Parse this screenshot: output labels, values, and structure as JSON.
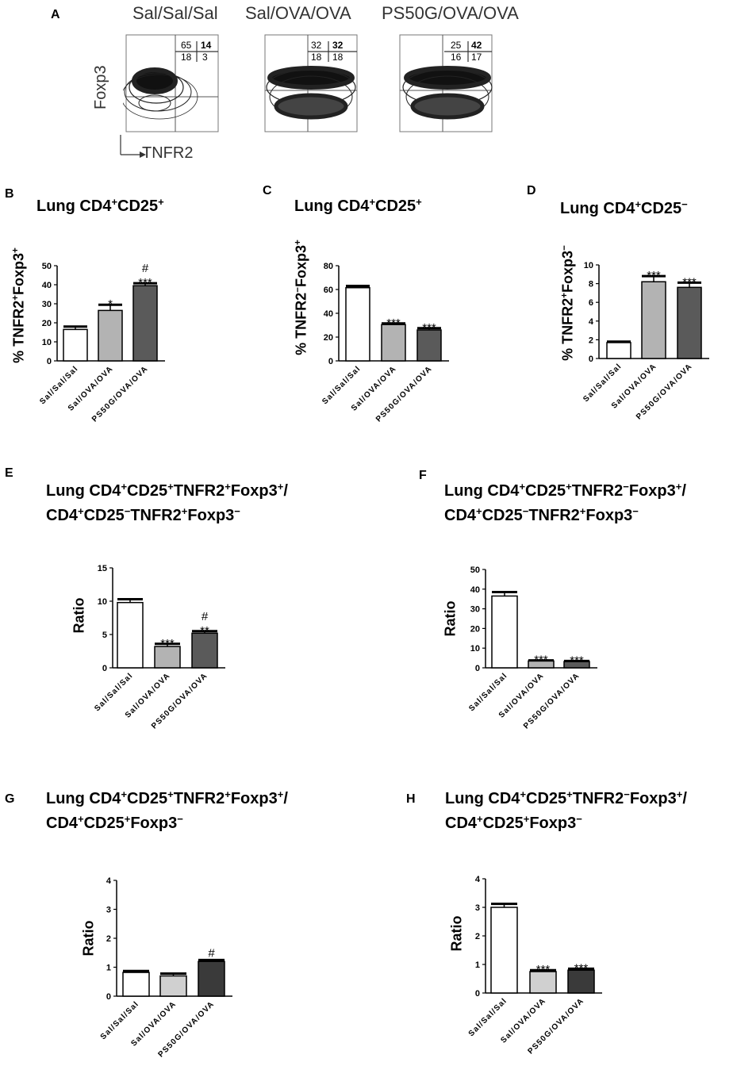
{
  "panels": {
    "A": "A",
    "B": "B",
    "C": "C",
    "D": "D",
    "E": "E",
    "F": "F",
    "G": "G",
    "H": "H"
  },
  "flow": {
    "headers": [
      "Sal/Sal/Sal",
      "Sal/OVA/OVA",
      "PS50G/OVA/OVA"
    ],
    "y_axis": "Foxp3",
    "x_axis": "TNFR2",
    "quadrants": [
      {
        "tl": "65",
        "tr": "14",
        "bl": "18",
        "br": "3"
      },
      {
        "tl": "32",
        "tr": "32",
        "bl": "18",
        "br": "18"
      },
      {
        "tl": "25",
        "tr": "42",
        "bl": "16",
        "br": "17"
      }
    ]
  },
  "chart_data": [
    {
      "panel": "B",
      "type": "bar",
      "title": [
        "Lung CD4",
        "+",
        "CD25",
        "+"
      ],
      "ylabel": [
        "% TNFR2",
        "+",
        "Foxp3",
        "+"
      ],
      "categories": [
        "Sal/Sal/Sal",
        "Sal/OVA/OVA",
        "PS50G/OVA/OVA"
      ],
      "values": [
        16.5,
        26.5,
        39.5
      ],
      "errors": [
        1.5,
        3,
        1.3
      ],
      "fills": [
        "#ffffff",
        "#b3b3b3",
        "#5a5a5a"
      ],
      "ylim": [
        0,
        50
      ],
      "yticks": [
        0,
        10,
        20,
        30,
        40,
        50
      ],
      "annotations": [
        [],
        [
          "*"
        ],
        [
          "#",
          "***"
        ]
      ]
    },
    {
      "panel": "C",
      "type": "bar",
      "title": [
        "Lung CD4",
        "+",
        "CD25",
        "+"
      ],
      "ylabel": [
        "% TNFR2",
        "−",
        "Foxp3",
        "+"
      ],
      "categories": [
        "Sal/Sal/Sal",
        "Sal/OVA/OVA",
        "PS50G/OVA/OVA"
      ],
      "values": [
        61.5,
        30.5,
        26
      ],
      "errors": [
        1.5,
        1,
        1.5
      ],
      "fills": [
        "#ffffff",
        "#b3b3b3",
        "#5a5a5a"
      ],
      "ylim": [
        0,
        80
      ],
      "yticks": [
        0,
        20,
        40,
        60,
        80
      ],
      "annotations": [
        [],
        [
          "***"
        ],
        [
          "***"
        ]
      ]
    },
    {
      "panel": "D",
      "type": "bar",
      "title": [
        "Lung CD4",
        "+",
        "CD25",
        "−"
      ],
      "ylabel": [
        "% TNFR2",
        "+",
        "Foxp3",
        "−"
      ],
      "categories": [
        "Sal/Sal/Sal",
        "Sal/OVA/OVA",
        "PS50G/OVA/OVA"
      ],
      "values": [
        1.7,
        8.2,
        7.6
      ],
      "errors": [
        0.1,
        0.6,
        0.5
      ],
      "fills": [
        "#ffffff",
        "#b3b3b3",
        "#5a5a5a"
      ],
      "ylim": [
        0,
        10
      ],
      "yticks": [
        0,
        2,
        4,
        6,
        8,
        10
      ],
      "annotations": [
        [],
        [
          "***"
        ],
        [
          "***"
        ]
      ]
    },
    {
      "panel": "E",
      "type": "bar",
      "title_lines": [
        [
          "Lung CD4",
          "+",
          "CD25",
          "+",
          "TNFR2",
          "+",
          "Foxp3",
          "+",
          "/"
        ],
        [
          "CD4",
          "+",
          "CD25",
          "−",
          "TNFR2",
          "+",
          "Foxp3",
          "−"
        ]
      ],
      "ylabel": [
        "Ratio"
      ],
      "categories": [
        "Sal/Sal/Sal",
        "Sal/OVA/OVA",
        "PS50G/OVA/OVA"
      ],
      "values": [
        9.8,
        3.2,
        5.2
      ],
      "errors": [
        0.5,
        0.4,
        0.3
      ],
      "fills": [
        "#ffffff",
        "#b3b3b3",
        "#5a5a5a"
      ],
      "ylim": [
        0,
        15
      ],
      "yticks": [
        0,
        5,
        10,
        15
      ],
      "annotations": [
        [],
        [
          "***"
        ],
        [
          "#",
          "**"
        ]
      ]
    },
    {
      "panel": "F",
      "type": "bar",
      "title_lines": [
        [
          "Lung CD4",
          "+",
          "CD25",
          "+",
          "TNFR2",
          "−",
          "Foxp3",
          "+",
          "/"
        ],
        [
          "CD4",
          "+",
          "CD25",
          "−",
          "TNFR2",
          "+",
          "Foxp3",
          "−"
        ]
      ],
      "ylabel": [
        "Ratio"
      ],
      "categories": [
        "Sal/Sal/Sal",
        "Sal/OVA/OVA",
        "PS50G/OVA/OVA"
      ],
      "values": [
        36.5,
        3.5,
        3.2
      ],
      "errors": [
        2,
        0.3,
        0.3
      ],
      "fills": [
        "#ffffff",
        "#b3b3b3",
        "#5a5a5a"
      ],
      "ylim": [
        0,
        50
      ],
      "yticks": [
        0,
        10,
        20,
        30,
        40,
        50
      ],
      "annotations": [
        [],
        [
          "***"
        ],
        [
          "***"
        ]
      ]
    },
    {
      "panel": "G",
      "type": "bar",
      "title_lines": [
        [
          "Lung CD4",
          "+",
          "CD25",
          "+",
          "TNFR2",
          "+",
          "Foxp3",
          "+",
          "/"
        ],
        [
          "CD4",
          "+",
          "CD25",
          "+",
          "Foxp3",
          "−"
        ]
      ],
      "ylabel": [
        "Ratio"
      ],
      "categories": [
        "Sal/Sal/Sal",
        "Sal/OVA/OVA",
        "PS50G/OVA/OVA"
      ],
      "values": [
        0.82,
        0.7,
        1.2
      ],
      "errors": [
        0.05,
        0.08,
        0.05
      ],
      "fills": [
        "#ffffff",
        "#d0d0d0",
        "#3a3a3a"
      ],
      "ylim": [
        0,
        4
      ],
      "yticks": [
        0,
        1,
        2,
        3,
        4
      ],
      "annotations": [
        [],
        [],
        [
          "#"
        ]
      ]
    },
    {
      "panel": "H",
      "type": "bar",
      "title_lines": [
        [
          "Lung CD4",
          "+",
          "CD25",
          "+",
          "TNFR2",
          "−",
          "Foxp3",
          "+",
          "/"
        ],
        [
          "CD4",
          "+",
          "CD25",
          "+",
          "Foxp3",
          "−"
        ]
      ],
      "ylabel": [
        "Ratio"
      ],
      "categories": [
        "Sal/Sal/Sal",
        "Sal/OVA/OVA",
        "PS50G/OVA/OVA"
      ],
      "values": [
        3.0,
        0.75,
        0.8
      ],
      "errors": [
        0.12,
        0.05,
        0.05
      ],
      "fills": [
        "#ffffff",
        "#d0d0d0",
        "#3a3a3a"
      ],
      "ylim": [
        0,
        4
      ],
      "yticks": [
        0,
        1,
        2,
        3,
        4
      ],
      "annotations": [
        [],
        [
          "***"
        ],
        [
          "***"
        ]
      ]
    }
  ]
}
